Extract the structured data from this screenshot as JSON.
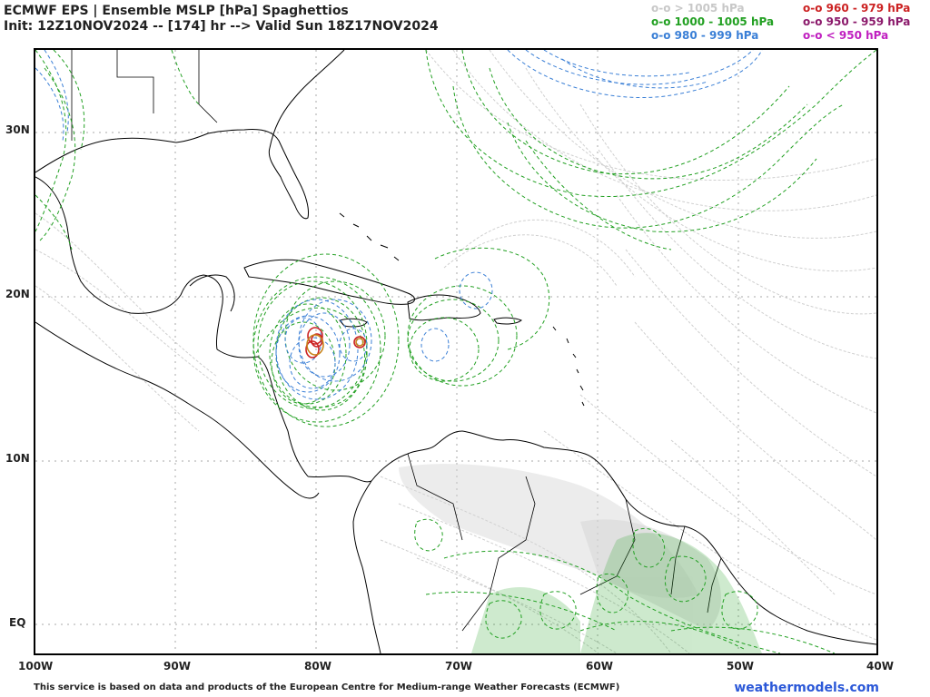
{
  "header": {
    "line1": "ECMWF EPS | Ensemble MSLP [hPa] Spaghettios",
    "line2": "Init: 12Z10NOV2024 -- [174] hr --> Valid Sun 18Z17NOV2024"
  },
  "legend": {
    "left": [
      {
        "text": "o-o > 1005 hPa",
        "color": "#c8c8c8"
      },
      {
        "text": "o-o 1000 - 1005 hPa",
        "color": "#22a022"
      },
      {
        "text": "o-o 980 - 999 hPa",
        "color": "#3a7fd6"
      }
    ],
    "right": [
      {
        "text": "o-o 960 - 979 hPa",
        "color": "#cc2222"
      },
      {
        "text": "o-o 950 - 959 hPa",
        "color": "#8b1a6b"
      },
      {
        "text": "o-o < 950 hPa",
        "color": "#c020c0"
      }
    ]
  },
  "axes": {
    "lat_labels": [
      "30N",
      "20N",
      "10N",
      "EQ"
    ],
    "lon_labels": [
      "100W",
      "90W",
      "80W",
      "70W",
      "60W",
      "50W",
      "40W"
    ]
  },
  "footer": {
    "note": "This service is based on data and products of the European Centre for Medium-range Weather Forecasts (ECMWF)",
    "brand": "weathermodels.com"
  }
}
